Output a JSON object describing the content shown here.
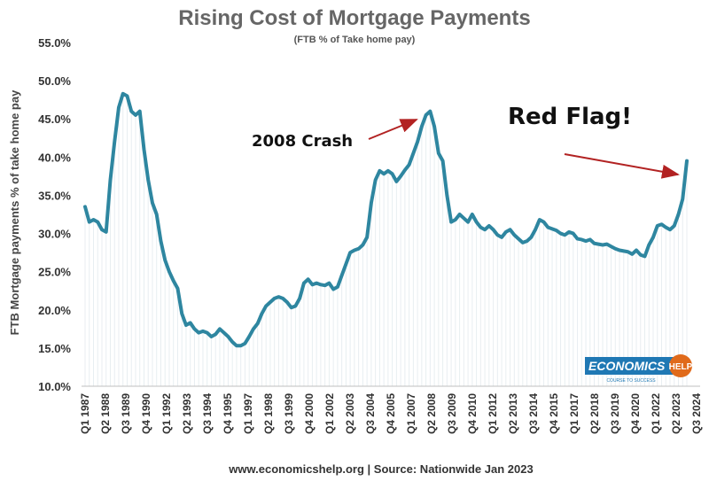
{
  "chart_data": {
    "type": "line",
    "title": "Rising Cost of Mortgage Payments",
    "subtitle": "(FTB % of Take home pay)",
    "ylabel": "FTB Mortgage payments % of take home pay",
    "xlabel": "",
    "source": "www.economicshelp.org | Source: Nationwide Jan 2023",
    "ylim": [
      10,
      55
    ],
    "yticks": [
      "10.0%",
      "15.0%",
      "20.0%",
      "25.0%",
      "30.0%",
      "35.0%",
      "40.0%",
      "45.0%",
      "50.0%",
      "55.0%"
    ],
    "xticks": [
      "Q1 1987",
      "Q2 1988",
      "Q3 1989",
      "Q4 1990",
      "Q1 1992",
      "Q2 1993",
      "Q3 1994",
      "Q4 1995",
      "Q1 1997",
      "Q2 1998",
      "Q3 1999",
      "Q4 2000",
      "Q1 2002",
      "Q2 2003",
      "Q3 2004",
      "Q4 2005",
      "Q1 2007",
      "Q2 2008",
      "Q3 2009",
      "Q4 2010",
      "Q1 2012",
      "Q2 2013",
      "Q3 2014",
      "Q4 2015",
      "Q1 2017",
      "Q2 2018",
      "Q3 2019",
      "Q4 2020",
      "Q1 2022",
      "Q2 2023",
      "Q3 2024"
    ],
    "grid": false,
    "line_color": "#2e86a0",
    "series": [
      {
        "values": [
          33.5,
          31.5,
          31.8,
          31.5,
          30.5,
          30.2,
          37.0,
          42.0,
          46.5,
          48.3,
          48.0,
          46.0,
          45.5,
          46.0,
          41.0,
          37.0,
          34.0,
          32.5,
          29.0,
          26.5,
          25.0,
          23.8,
          22.8,
          19.5,
          18.0,
          18.3,
          17.5,
          17.0,
          17.2,
          17.0,
          16.5,
          16.8,
          17.5,
          17.0,
          16.5,
          15.8,
          15.3,
          15.3,
          15.6,
          16.5,
          17.5,
          18.2,
          19.5,
          20.5,
          21.0,
          21.5,
          21.7,
          21.5,
          21.0,
          20.3,
          20.5,
          21.5,
          23.5,
          24.0,
          23.3,
          23.5,
          23.3,
          23.2,
          23.5,
          22.7,
          23.0,
          24.5,
          26.0,
          27.5,
          27.8,
          28.0,
          28.5,
          29.5,
          34.0,
          37.0,
          38.2,
          37.8,
          38.2,
          37.8,
          36.8,
          37.5,
          38.3,
          39.0,
          40.5,
          42.0,
          44.0,
          45.5,
          46.0,
          44.0,
          40.5,
          39.5,
          35.0,
          31.5,
          31.8,
          32.5,
          32.0,
          31.5,
          32.5,
          31.5,
          30.8,
          30.5,
          31.0,
          30.5,
          29.8,
          29.5,
          30.2,
          30.5,
          29.8,
          29.3,
          28.8,
          29.0,
          29.5,
          30.5,
          31.8,
          31.5,
          30.8,
          30.6,
          30.4,
          30.0,
          29.8,
          30.2,
          30.0,
          29.3,
          29.2,
          29.0,
          29.2,
          28.7,
          28.6,
          28.5,
          28.6,
          28.3,
          28.0,
          27.8,
          27.7,
          27.6,
          27.3,
          27.8,
          27.2,
          27.0,
          28.5,
          29.5,
          31.0,
          31.2,
          30.8,
          30.5,
          31.0,
          32.5,
          34.5,
          39.5
        ]
      }
    ],
    "annotations": [
      {
        "text": "2008 Crash"
      },
      {
        "text": "Red Flag!"
      }
    ]
  },
  "logo": {
    "text": "ECONOMICS",
    "help": "HELP",
    "tagline": "COURSE TO SUCCESS"
  },
  "colors": {
    "line": "#2e86a0",
    "arrow": "#b22222",
    "logo_bg": "#1f78b4",
    "logo_accent": "#e06a1b"
  }
}
